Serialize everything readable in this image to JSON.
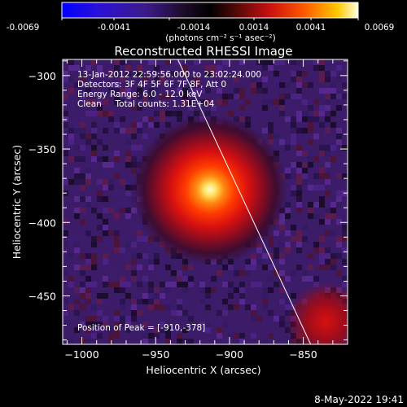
{
  "colorbar": {
    "ticks": [
      "-0.0069",
      "-0.0041",
      "-0.0014",
      "0.0014",
      "0.0041",
      "0.0069"
    ],
    "unit": "(photons cm⁻² s⁻¹ asec⁻²)"
  },
  "footer": {
    "date": "8-May-2022 19:41"
  },
  "chart_data": {
    "type": "heatmap",
    "title": "Reconstructed RHESSI Image",
    "xlabel": "Heliocentric X (arcsec)",
    "ylabel": "Heliocentric Y (arcsec)",
    "xlim": [
      -1013,
      -820
    ],
    "ylim": [
      -483,
      -289
    ],
    "x_ticks": [
      -1000,
      -950,
      -900,
      -850
    ],
    "x_tick_labels": [
      "−1000",
      "−950",
      "−900",
      "−850"
    ],
    "y_ticks": [
      -300,
      -350,
      -400,
      -450
    ],
    "y_tick_labels": [
      "−300",
      "−350",
      "−400",
      "−450"
    ],
    "annotations": [
      "13-Jan-2012 22:59:56.000 to 23:02:24.000",
      "Detectors: 3F 4F 5F 6F 7F 8F, Att 0",
      "Energy Range: 6.0 - 12.0 keV",
      "Clean     Total counts: 1.31E+04"
    ],
    "peak_label": "Position of Peak = [-910,-378]",
    "peak": {
      "x": -910,
      "y": -378
    },
    "limb_line": [
      [
        -935,
        -289
      ],
      [
        -845,
        -483
      ]
    ],
    "color_range": [
      -0.0069,
      0.0069
    ],
    "colors": {
      "background": "#000000",
      "foreground": "#ffffff",
      "low": "#0000ff",
      "mid": "#000000",
      "high": "#ffffff"
    }
  }
}
